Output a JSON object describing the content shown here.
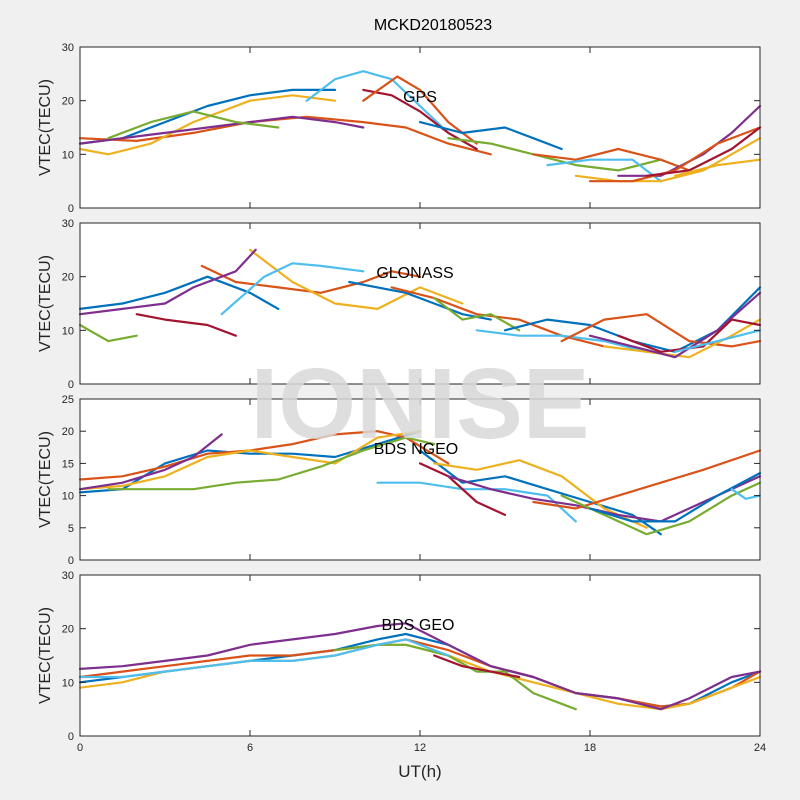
{
  "figure": {
    "title": "MCKD20180523",
    "watermark": "IONISE",
    "xlabel": "UT(h)"
  },
  "colors": [
    "#0072bd",
    "#d95319",
    "#edb120",
    "#7e2f8e",
    "#77ac30",
    "#4dbeee",
    "#a2142f"
  ],
  "chart_data": [
    {
      "type": "line",
      "annotation": "GPS",
      "ylabel": "VTEC(TECU)",
      "xlim": [
        0,
        24
      ],
      "ylim": [
        0,
        30
      ],
      "xticks": [
        0,
        6,
        12,
        18,
        24
      ],
      "yticks": [
        0,
        10,
        20,
        30
      ],
      "series": [
        {
          "color_index": 0,
          "x": [
            0,
            1.5,
            3,
            4.5,
            6,
            7.5,
            9
          ],
          "y": [
            12,
            13,
            16,
            19,
            21,
            22,
            22
          ]
        },
        {
          "color_index": 1,
          "x": [
            0,
            2,
            4,
            6,
            8,
            10,
            11.5,
            13,
            14.5
          ],
          "y": [
            13,
            12.5,
            14,
            16,
            17,
            16,
            15,
            12,
            10
          ]
        },
        {
          "color_index": 2,
          "x": [
            0,
            1,
            2.5,
            4,
            6,
            7.5,
            9
          ],
          "y": [
            11,
            10,
            12,
            16,
            20,
            21,
            20
          ]
        },
        {
          "color_index": 3,
          "x": [
            0,
            1.5,
            3,
            4.5,
            6,
            7.5,
            9,
            10
          ],
          "y": [
            12,
            13,
            14,
            15,
            16,
            17,
            16,
            15
          ]
        },
        {
          "color_index": 4,
          "x": [
            1,
            2.5,
            4,
            5.5,
            7
          ],
          "y": [
            13,
            16,
            18,
            16,
            15
          ]
        },
        {
          "color_index": 5,
          "x": [
            8,
            9,
            10,
            11,
            12,
            13
          ],
          "y": [
            20,
            24,
            25.5,
            24,
            19,
            14
          ]
        },
        {
          "color_index": 6,
          "x": [
            10,
            11,
            12,
            13,
            14
          ],
          "y": [
            22,
            21,
            18,
            14,
            11
          ]
        },
        {
          "color_index": 1,
          "x": [
            10,
            11.2,
            12,
            13,
            14
          ],
          "y": [
            20,
            24.5,
            22,
            16,
            12
          ]
        },
        {
          "color_index": 0,
          "x": [
            12,
            13.5,
            15,
            16,
            17
          ],
          "y": [
            16,
            14,
            15,
            13,
            11
          ]
        },
        {
          "color_index": 4,
          "x": [
            13,
            14.5,
            16,
            17.5,
            19,
            20.5
          ],
          "y": [
            13,
            12,
            10,
            8,
            7,
            9
          ]
        },
        {
          "color_index": 1,
          "x": [
            16,
            17.5,
            19,
            20.5,
            21.5
          ],
          "y": [
            10,
            9,
            11,
            9,
            7
          ]
        },
        {
          "color_index": 5,
          "x": [
            16.5,
            18,
            19.5,
            20.5
          ],
          "y": [
            8,
            9,
            9,
            5
          ]
        },
        {
          "color_index": 2,
          "x": [
            17.5,
            19,
            20.5,
            22,
            24
          ],
          "y": [
            6,
            5,
            5,
            7,
            13
          ]
        },
        {
          "color_index": 3,
          "x": [
            19,
            20.5,
            22,
            23,
            24
          ],
          "y": [
            6,
            6,
            10,
            14,
            19
          ]
        },
        {
          "color_index": 1,
          "x": [
            18,
            19.5,
            21,
            22.5,
            24
          ],
          "y": [
            5,
            5,
            7,
            12,
            15
          ]
        },
        {
          "color_index": 6,
          "x": [
            20,
            21.5,
            23,
            24
          ],
          "y": [
            6,
            7,
            11,
            15
          ]
        },
        {
          "color_index": 2,
          "x": [
            21,
            22.5,
            24
          ],
          "y": [
            6,
            8,
            9
          ]
        }
      ]
    },
    {
      "type": "line",
      "annotation": "GLONASS",
      "ylabel": "VTEC(TECU)",
      "xlim": [
        0,
        24
      ],
      "ylim": [
        0,
        30
      ],
      "xticks": [
        0,
        6,
        12,
        18,
        24
      ],
      "yticks": [
        0,
        10,
        20,
        30
      ],
      "series": [
        {
          "color_index": 0,
          "x": [
            0,
            1.5,
            3,
            4.5,
            6,
            7
          ],
          "y": [
            14,
            15,
            17,
            20,
            17,
            14
          ]
        },
        {
          "color_index": 1,
          "x": [
            4.3,
            5.5,
            7,
            8.5,
            10,
            11,
            12
          ],
          "y": [
            22,
            19,
            18,
            17,
            19,
            21,
            20
          ]
        },
        {
          "color_index": 2,
          "x": [
            6,
            7.5,
            9,
            10.5,
            12,
            13.5
          ],
          "y": [
            25,
            19,
            15,
            14,
            18,
            15
          ]
        },
        {
          "color_index": 3,
          "x": [
            0,
            1.5,
            3,
            4,
            5.5,
            6.2
          ],
          "y": [
            13,
            14,
            15,
            18,
            21,
            25
          ]
        },
        {
          "color_index": 4,
          "x": [
            0,
            1,
            2
          ],
          "y": [
            11,
            8,
            9
          ]
        },
        {
          "color_index": 5,
          "x": [
            5,
            6.5,
            7.5,
            8.5,
            10
          ],
          "y": [
            13,
            20,
            22.5,
            22,
            21
          ]
        },
        {
          "color_index": 6,
          "x": [
            2,
            3,
            4.5,
            5.5
          ],
          "y": [
            13,
            12,
            11,
            9
          ]
        },
        {
          "color_index": 0,
          "x": [
            9.5,
            10.5,
            11.5,
            12.5,
            13.5,
            14.5
          ],
          "y": [
            19,
            18,
            17,
            15,
            13,
            12
          ]
        },
        {
          "color_index": 1,
          "x": [
            11,
            12.5,
            14,
            15.5,
            17,
            18.5
          ],
          "y": [
            18,
            16,
            13,
            12,
            9,
            7
          ]
        },
        {
          "color_index": 4,
          "x": [
            12.5,
            13.5,
            14.5,
            15.5
          ],
          "y": [
            16,
            12,
            13,
            10
          ]
        },
        {
          "color_index": 5,
          "x": [
            14,
            15.5,
            17,
            18.5,
            20
          ],
          "y": [
            10,
            9,
            9,
            8,
            6
          ]
        },
        {
          "color_index": 0,
          "x": [
            15,
            16.5,
            18,
            19.5,
            21,
            22.5,
            24
          ],
          "y": [
            10,
            12,
            11,
            8,
            6,
            10,
            18
          ]
        },
        {
          "color_index": 1,
          "x": [
            17,
            18.5,
            20,
            21.5,
            23,
            24
          ],
          "y": [
            8,
            12,
            13,
            8,
            7,
            8
          ]
        },
        {
          "color_index": 2,
          "x": [
            18.5,
            20,
            21.5,
            23,
            24
          ],
          "y": [
            7,
            6,
            5,
            9,
            12
          ]
        },
        {
          "color_index": 3,
          "x": [
            18,
            19.5,
            21,
            22.5,
            24
          ],
          "y": [
            9,
            7,
            5,
            10,
            17
          ]
        },
        {
          "color_index": 6,
          "x": [
            19,
            20.5,
            22,
            23,
            24
          ],
          "y": [
            9,
            6,
            7,
            12,
            11
          ]
        },
        {
          "color_index": 5,
          "x": [
            21,
            22.5,
            24
          ],
          "y": [
            6,
            8,
            10
          ]
        }
      ]
    },
    {
      "type": "line",
      "annotation": "BDS NGEO",
      "ylabel": "VTEC(TECU)",
      "xlim": [
        0,
        24
      ],
      "ylim": [
        0,
        25
      ],
      "xticks": [
        0,
        6,
        12,
        18,
        24
      ],
      "yticks": [
        0,
        5,
        10,
        15,
        20,
        25
      ],
      "series": [
        {
          "color_index": 0,
          "x": [
            0,
            1.5,
            3,
            4.5,
            6,
            7.5,
            9,
            10.5,
            12
          ],
          "y": [
            10.5,
            11,
            15,
            17,
            16.5,
            16.5,
            16,
            18,
            20
          ]
        },
        {
          "color_index": 1,
          "x": [
            0,
            1.5,
            3,
            4.5,
            6,
            7.5,
            9,
            10.5,
            11.5,
            13
          ],
          "y": [
            12.5,
            13,
            14.5,
            16.5,
            17,
            18,
            19.5,
            20,
            19,
            15
          ]
        },
        {
          "color_index": 2,
          "x": [
            0,
            1.5,
            3,
            4.5,
            6,
            7.5,
            9,
            10.5,
            12
          ],
          "y": [
            11,
            11.5,
            13,
            16,
            17,
            16,
            15,
            19,
            20
          ]
        },
        {
          "color_index": 3,
          "x": [
            0,
            1.5,
            3,
            4,
            5
          ],
          "y": [
            11,
            12,
            14,
            16,
            19.5
          ]
        },
        {
          "color_index": 4,
          "x": [
            1,
            2.5,
            4,
            5.5,
            7,
            8.5,
            10,
            11.5,
            12.5
          ],
          "y": [
            11,
            11,
            11,
            12,
            12.5,
            14.5,
            17,
            19,
            18
          ]
        },
        {
          "color_index": 5,
          "x": [
            10.5,
            12,
            13.5,
            15,
            16.5,
            17.5
          ],
          "y": [
            12,
            12,
            11,
            11,
            10,
            6
          ]
        },
        {
          "color_index": 6,
          "x": [
            12,
            13,
            14,
            15
          ],
          "y": [
            15,
            13,
            9,
            7
          ]
        },
        {
          "color_index": 0,
          "x": [
            12,
            13.5,
            15,
            16.5,
            18,
            19.5,
            20.5
          ],
          "y": [
            17,
            12,
            13,
            11,
            9,
            7,
            4
          ]
        },
        {
          "color_index": 2,
          "x": [
            12.5,
            14,
            15.5,
            17,
            18.5,
            20
          ],
          "y": [
            15,
            14,
            15.5,
            13,
            8,
            5
          ]
        },
        {
          "color_index": 3,
          "x": [
            13,
            14.5,
            16,
            17.5,
            19,
            20.5,
            22,
            24
          ],
          "y": [
            13,
            11,
            9.5,
            8.5,
            7,
            6,
            9,
            13
          ]
        },
        {
          "color_index": 1,
          "x": [
            16,
            17.5,
            19,
            20.5,
            22,
            24
          ],
          "y": [
            9,
            8,
            10,
            12,
            14,
            17
          ]
        },
        {
          "color_index": 4,
          "x": [
            17,
            18.5,
            20,
            21.5,
            23,
            24
          ],
          "y": [
            10,
            7,
            4,
            6,
            10,
            12
          ]
        },
        {
          "color_index": 0,
          "x": [
            18,
            19.5,
            21,
            22.5,
            24
          ],
          "y": [
            8,
            6,
            6,
            10,
            13.5
          ]
        },
        {
          "color_index": 5,
          "x": [
            23,
            23.5,
            24
          ],
          "y": [
            11,
            9.5,
            10
          ]
        }
      ]
    },
    {
      "type": "line",
      "annotation": "BDS GEO",
      "ylabel": "VTEC(TECU)",
      "xlim": [
        0,
        24
      ],
      "ylim": [
        0,
        30
      ],
      "xticks": [
        0,
        6,
        12,
        18,
        24
      ],
      "yticks": [
        0,
        10,
        20,
        30
      ],
      "series": [
        {
          "color_index": 0,
          "x": [
            0,
            1.5,
            3,
            4.5,
            6,
            7.5,
            9,
            10.5,
            11.5,
            13,
            14.5,
            16,
            17.5,
            19,
            20.5,
            21.5,
            23,
            24
          ],
          "y": [
            10,
            11,
            12,
            13,
            14,
            15,
            16,
            18,
            19,
            17,
            13,
            11,
            8,
            7,
            5.5,
            6,
            10,
            12
          ]
        },
        {
          "color_index": 1,
          "x": [
            0,
            1.5,
            3,
            4.5,
            6,
            7.5,
            9,
            10.5,
            11.5,
            13,
            14.5,
            16,
            17.5,
            19,
            20.5,
            21.5,
            23,
            24
          ],
          "y": [
            11,
            12,
            13,
            14,
            15,
            15,
            16,
            17,
            18,
            16,
            13,
            11,
            8,
            7,
            5.5,
            6,
            9,
            12
          ]
        },
        {
          "color_index": 2,
          "x": [
            0,
            1.5,
            3,
            4.5,
            6,
            7.5,
            9,
            10.5,
            11.5,
            13,
            14.5,
            16,
            17.5,
            19,
            20.5,
            21.5,
            23,
            24
          ],
          "y": [
            9,
            10,
            12,
            13,
            14,
            14,
            15,
            17,
            17,
            15,
            12,
            10,
            8,
            6,
            5,
            6,
            9,
            11
          ]
        },
        {
          "color_index": 3,
          "x": [
            0,
            1.5,
            3,
            4.5,
            6,
            7.5,
            9,
            10.5,
            11.5,
            13,
            14.5,
            16,
            17.5,
            19,
            20.5,
            21.5,
            23,
            24
          ],
          "y": [
            12.5,
            13,
            14,
            15,
            17,
            18,
            19,
            20.5,
            21,
            17,
            13,
            11,
            8,
            7,
            5,
            7,
            11,
            12
          ]
        },
        {
          "color_index": 4,
          "x": [
            9,
            10.5,
            11.5,
            13,
            14,
            15,
            16,
            17.5
          ],
          "y": [
            16,
            17,
            17,
            15,
            12,
            12,
            8,
            5
          ]
        },
        {
          "color_index": 5,
          "x": [
            0,
            1.5,
            3,
            4.5,
            6,
            7.5,
            9,
            10.5,
            11.5,
            13
          ],
          "y": [
            11,
            11,
            12,
            13,
            14,
            14,
            15,
            17,
            18,
            15
          ]
        },
        {
          "color_index": 6,
          "x": [
            12.5,
            13.5,
            14.5,
            15.5
          ],
          "y": [
            15,
            13,
            12,
            11
          ]
        }
      ]
    }
  ]
}
